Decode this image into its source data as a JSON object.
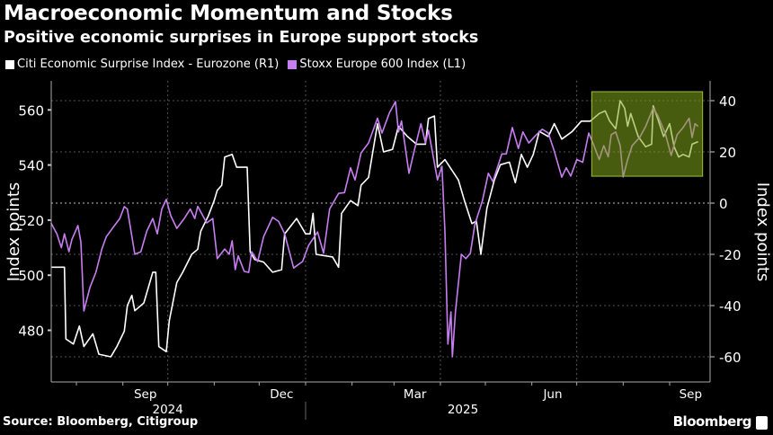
{
  "header": {
    "title": "Macroeconomic Momentum and Stocks",
    "subtitle": "Positive economic surprises in Europe support stocks"
  },
  "footer": {
    "source": "Source: Bloomberg, Citigroup",
    "brand": "Bloomberg"
  },
  "chart_data": {
    "type": "line",
    "title": "Macroeconomic Momentum and Stocks",
    "subtitle": "Positive economic surprises in Europe support stocks",
    "legend_placement": "top-left",
    "grid": true,
    "xlabel": "",
    "ylabel_left": "Index points",
    "ylabel_right": "Index points",
    "ylim_left": [
      465,
      569
    ],
    "ylim_right": [
      -70,
      48
    ],
    "yticks_left": [
      480,
      500,
      520,
      540,
      560
    ],
    "yticks_right": [
      -60,
      -40,
      -20,
      0,
      20,
      40
    ],
    "xlim_days_from_2025_01_01": [
      -170,
      270
    ],
    "xtick_labels": [
      {
        "label": "Sep",
        "day": -107
      },
      {
        "label": "Dec",
        "day": -16
      },
      {
        "label": "Mar",
        "day": 73
      },
      {
        "label": "Jun",
        "day": 165
      },
      {
        "label": "Sep",
        "day": 257
      }
    ],
    "year_labels": [
      {
        "label": "2024",
        "day": -92
      },
      {
        "label": "2025",
        "day": 105
      }
    ],
    "month_boundaries_days": [
      -153,
      -122,
      -92,
      -61,
      -31,
      0,
      31,
      59,
      90,
      120,
      151,
      181,
      212,
      243
    ],
    "quarter_gridlines_days": [
      -92,
      0,
      90,
      181
    ],
    "highlight": {
      "x_days": [
        191,
        265
      ],
      "y_right": [
        10.5,
        43.5
      ],
      "color": "#84a81e"
    },
    "series": [
      {
        "name": "Citi Economic Surprise Index - Eurozone (R1)",
        "axis": "right",
        "color": "#ffffff",
        "points": [
          [
            -170,
            -25
          ],
          [
            -161,
            -25
          ],
          [
            -160,
            -53
          ],
          [
            -155,
            -55
          ],
          [
            -151,
            -48
          ],
          [
            -148,
            -56
          ],
          [
            -142,
            -51
          ],
          [
            -138,
            -59
          ],
          [
            -130,
            -60
          ],
          [
            -126,
            -56
          ],
          [
            -121,
            -50
          ],
          [
            -119,
            -40
          ],
          [
            -116,
            -36
          ],
          [
            -114,
            -42
          ],
          [
            -108,
            -39
          ],
          [
            -102,
            -27
          ],
          [
            -100,
            -27
          ],
          [
            -98,
            -56
          ],
          [
            -93,
            -58
          ],
          [
            -91,
            -46
          ],
          [
            -86,
            -31
          ],
          [
            -82,
            -27
          ],
          [
            -76,
            -20
          ],
          [
            -72,
            -18
          ],
          [
            -70,
            -11
          ],
          [
            -65,
            -5
          ],
          [
            -61,
            1
          ],
          [
            -59,
            5
          ],
          [
            -56,
            7
          ],
          [
            -54,
            18
          ],
          [
            -49,
            19
          ],
          [
            -46,
            14
          ],
          [
            -39,
            14
          ],
          [
            -37,
            -19
          ],
          [
            -34,
            -22
          ],
          [
            -28,
            -23
          ],
          [
            -22,
            -27
          ],
          [
            -16,
            -26
          ],
          [
            -14,
            -12
          ],
          [
            -6,
            -6
          ],
          [
            0,
            -12
          ],
          [
            3,
            -12
          ],
          [
            5,
            -4
          ],
          [
            7,
            -20
          ],
          [
            18,
            -21
          ],
          [
            22,
            -25
          ],
          [
            24,
            -4
          ],
          [
            30,
            1
          ],
          [
            35,
            -1
          ],
          [
            37,
            7
          ],
          [
            42,
            10
          ],
          [
            48,
            31
          ],
          [
            52,
            20
          ],
          [
            58,
            21
          ],
          [
            62,
            30
          ],
          [
            68,
            26
          ],
          [
            74,
            23
          ],
          [
            80,
            23
          ],
          [
            82,
            33
          ],
          [
            86,
            34
          ],
          [
            88,
            14
          ],
          [
            93,
            17
          ],
          [
            102,
            9
          ],
          [
            106,
            1
          ],
          [
            111,
            -8
          ],
          [
            114,
            -7
          ],
          [
            117,
            -20
          ],
          [
            121,
            -2
          ],
          [
            126,
            9
          ],
          [
            130,
            15
          ],
          [
            136,
            16
          ],
          [
            140,
            8
          ],
          [
            144,
            19
          ],
          [
            148,
            14
          ],
          [
            152,
            19
          ],
          [
            156,
            28
          ],
          [
            162,
            26
          ],
          [
            166,
            31
          ],
          [
            171,
            25
          ],
          [
            178,
            28
          ],
          [
            184,
            32
          ],
          [
            190,
            32
          ],
          [
            196,
            35
          ],
          [
            200,
            36
          ],
          [
            203,
            32
          ],
          [
            207,
            29
          ],
          [
            210,
            40
          ],
          [
            213,
            37
          ],
          [
            215,
            30
          ],
          [
            217,
            35
          ],
          [
            222,
            26
          ],
          [
            227,
            22
          ],
          [
            231,
            23
          ],
          [
            232,
            38
          ],
          [
            235,
            33
          ],
          [
            239,
            26
          ],
          [
            243,
            31
          ],
          [
            246,
            22
          ],
          [
            249,
            18
          ],
          [
            252,
            19
          ],
          [
            256,
            18
          ],
          [
            258,
            23
          ],
          [
            262,
            24
          ]
        ]
      },
      {
        "name": "Stoxx Europe 600 Index (L1)",
        "axis": "left",
        "color": "#c77ef0",
        "points": [
          [
            -170,
            519
          ],
          [
            -166,
            515
          ],
          [
            -163,
            510
          ],
          [
            -161,
            515
          ],
          [
            -158,
            508.5
          ],
          [
            -156,
            513
          ],
          [
            -152,
            518
          ],
          [
            -150,
            512
          ],
          [
            -148,
            487
          ],
          [
            -144,
            495.5
          ],
          [
            -140,
            501
          ],
          [
            -136,
            509.5
          ],
          [
            -133,
            514
          ],
          [
            -128,
            517.7
          ],
          [
            -124,
            520.6
          ],
          [
            -121,
            524.9
          ],
          [
            -119,
            524
          ],
          [
            -114,
            507.6
          ],
          [
            -110,
            508.5
          ],
          [
            -106,
            516
          ],
          [
            -102,
            520.6
          ],
          [
            -99,
            515
          ],
          [
            -96,
            524
          ],
          [
            -93,
            527.5
          ],
          [
            -90,
            521.6
          ],
          [
            -86,
            517
          ],
          [
            -81,
            520.6
          ],
          [
            -77,
            524
          ],
          [
            -74,
            520.6
          ],
          [
            -72,
            525
          ],
          [
            -66,
            519
          ],
          [
            -62,
            520.6
          ],
          [
            -59,
            506
          ],
          [
            -54,
            509.5
          ],
          [
            -51,
            507.6
          ],
          [
            -49,
            512.5
          ],
          [
            -47,
            502
          ],
          [
            -45,
            507
          ],
          [
            -41,
            501.4
          ],
          [
            -38,
            501
          ],
          [
            -36,
            508.5
          ],
          [
            -32,
            505
          ],
          [
            -28,
            514
          ],
          [
            -22,
            521
          ],
          [
            -18,
            519.5
          ],
          [
            -14,
            515
          ],
          [
            -8,
            502.6
          ],
          [
            -2,
            505
          ],
          [
            2,
            510.8
          ],
          [
            8,
            515.7
          ],
          [
            12,
            508
          ],
          [
            16,
            524
          ],
          [
            22,
            529.7
          ],
          [
            26,
            530
          ],
          [
            30,
            539
          ],
          [
            33,
            534.6
          ],
          [
            37,
            544.4
          ],
          [
            42,
            548
          ],
          [
            48,
            557
          ],
          [
            51,
            551.6
          ],
          [
            56,
            559
          ],
          [
            60,
            563
          ],
          [
            62,
            552
          ],
          [
            64,
            556
          ],
          [
            69,
            537
          ],
          [
            72,
            544
          ],
          [
            77,
            555
          ],
          [
            80,
            548
          ],
          [
            82,
            552.6
          ],
          [
            88,
            534.6
          ],
          [
            91,
            539.5
          ],
          [
            93,
            516
          ],
          [
            95,
            475
          ],
          [
            97,
            486.7
          ],
          [
            98,
            470.4
          ],
          [
            100,
            486.7
          ],
          [
            104,
            507.6
          ],
          [
            107,
            506
          ],
          [
            110,
            508
          ],
          [
            113,
            518.4
          ],
          [
            118,
            527
          ],
          [
            122,
            537
          ],
          [
            125,
            534
          ],
          [
            131,
            544
          ],
          [
            134,
            544
          ],
          [
            138,
            553.6
          ],
          [
            142,
            546
          ],
          [
            145,
            552
          ],
          [
            149,
            548
          ],
          [
            154,
            551
          ],
          [
            158,
            553
          ],
          [
            162,
            551.6
          ],
          [
            166,
            545
          ],
          [
            171,
            535.6
          ],
          [
            174,
            539
          ],
          [
            177,
            536
          ],
          [
            181,
            542
          ],
          [
            185,
            541
          ],
          [
            189,
            551.6
          ],
          [
            192,
            547.7
          ],
          [
            196,
            542
          ],
          [
            199,
            547
          ],
          [
            202,
            543
          ],
          [
            204,
            551
          ],
          [
            207,
            552
          ],
          [
            210,
            547
          ],
          [
            212,
            535.7
          ],
          [
            215,
            542
          ],
          [
            218,
            547
          ],
          [
            223,
            550
          ],
          [
            227,
            554
          ],
          [
            232,
            560.7
          ],
          [
            235,
            558
          ],
          [
            240,
            551.6
          ],
          [
            244,
            543.5
          ],
          [
            248,
            551
          ],
          [
            252,
            553.6
          ],
          [
            256,
            557
          ],
          [
            258,
            550
          ],
          [
            260,
            555
          ],
          [
            262,
            554
          ]
        ]
      }
    ]
  }
}
